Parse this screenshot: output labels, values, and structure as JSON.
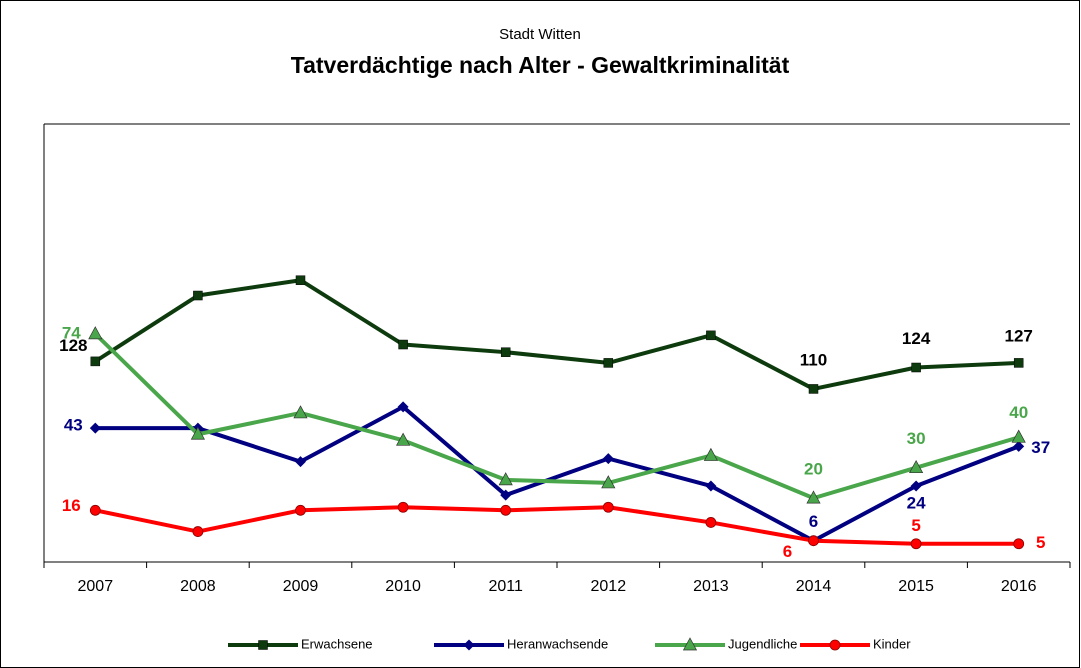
{
  "chart_data": {
    "type": "line",
    "subtitle": "Stadt Witten",
    "title": "Tatverdächtige nach Alter - Gewaltkriminalität",
    "categories": [
      "2007",
      "2008",
      "2009",
      "2010",
      "2011",
      "2012",
      "2013",
      "2014",
      "2015",
      "2016"
    ],
    "ylim": [
      -1,
      143
    ],
    "y2lim": [
      -3,
      283
    ],
    "series": [
      {
        "name": "Erwachsene",
        "color": "#0d3b0d",
        "marker": "square",
        "axis": "y2",
        "values": [
          128,
          171,
          181,
          139,
          134,
          127,
          145,
          110,
          124,
          127
        ],
        "value_labels": [
          "128",
          null,
          null,
          null,
          null,
          null,
          null,
          "110",
          "124",
          "127"
        ]
      },
      {
        "name": "Heranwachsende",
        "color": "#000080",
        "marker": "diamond",
        "values": [
          43,
          43,
          32,
          50,
          21,
          33,
          24,
          6,
          24,
          37
        ],
        "value_labels": [
          "43",
          null,
          null,
          null,
          null,
          null,
          null,
          "6",
          "24",
          "37"
        ]
      },
      {
        "name": "Jugendliche",
        "color": "#4aa64a",
        "marker": "triangle",
        "values": [
          74,
          41,
          48,
          39,
          26,
          25,
          34,
          20,
          30,
          40
        ],
        "value_labels": [
          "74",
          null,
          null,
          null,
          null,
          null,
          null,
          "20",
          "30",
          "40"
        ]
      },
      {
        "name": "Kinder",
        "color": "#ff0000",
        "marker": "circle",
        "values": [
          16,
          9,
          16,
          17,
          16,
          17,
          12,
          6,
          5,
          5
        ],
        "value_labels": [
          "16",
          null,
          null,
          null,
          null,
          null,
          null,
          "6",
          "5",
          "5"
        ]
      }
    ]
  }
}
